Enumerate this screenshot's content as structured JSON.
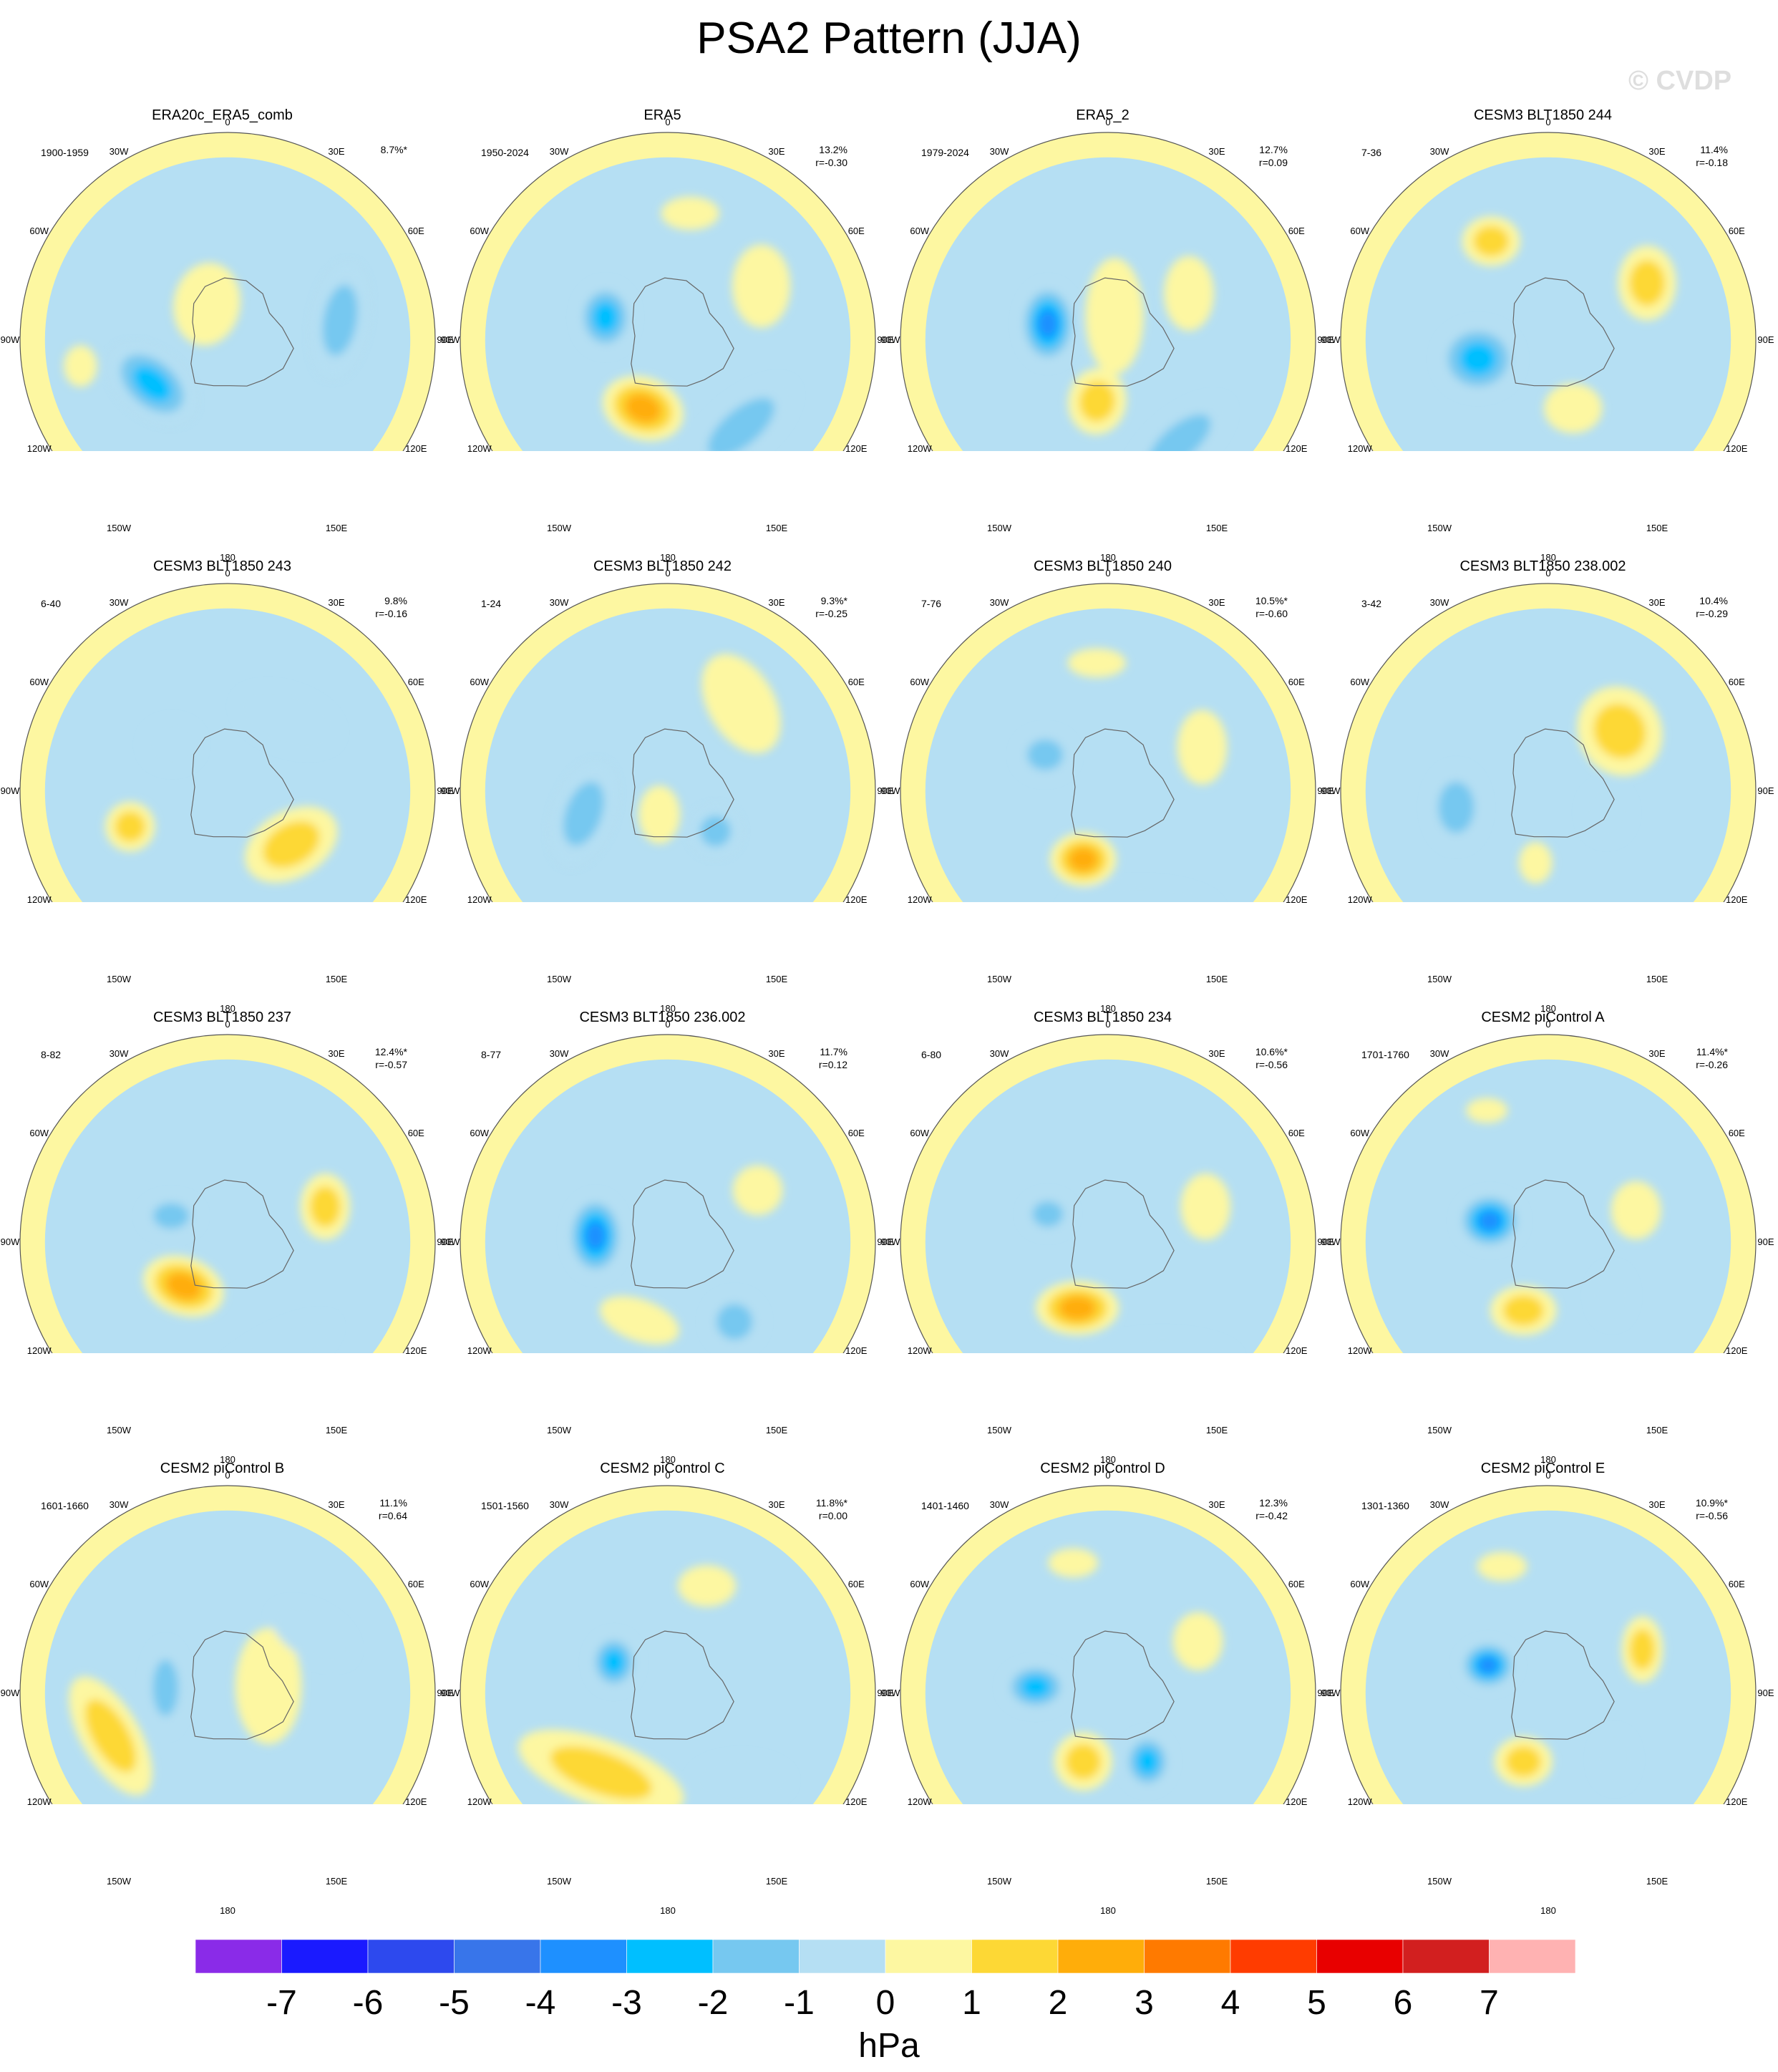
{
  "title": "PSA2 Pattern (JJA)",
  "watermark": "© CVDP",
  "chart_data": {
    "type": "heatmap",
    "projection": "south-polar-stereographic",
    "variable": "sea level pressure anomaly",
    "units": "hPa",
    "colorbar": {
      "levels": [
        -7,
        -6,
        -5,
        -4,
        -3,
        -2,
        -1,
        0,
        1,
        2,
        3,
        4,
        5,
        6,
        7
      ],
      "colors": [
        "#8a2be8",
        "#1a1aff",
        "#2d49ee",
        "#3875ea",
        "#1e90ff",
        "#00bfff",
        "#76c8f0",
        "#b5dff3",
        "#fdf7a1",
        "#fdd835",
        "#ffad0a",
        "#ff7a00",
        "#ff3c00",
        "#e80000",
        "#d21f1f",
        "#ffb2b2"
      ],
      "units_label": "hPa"
    },
    "lon_labels": [
      "0",
      "30E",
      "60E",
      "90E",
      "120E",
      "150E",
      "180",
      "150W",
      "120W",
      "90W",
      "60W",
      "30W"
    ],
    "panels": [
      {
        "name": "ERA20c_ERA5_comb",
        "years": "1900-1959",
        "pct": "8.7%*",
        "r": "",
        "features": [
          {
            "v": -3,
            "ang": 240,
            "dist": 0.42,
            "rx": 0.24,
            "ry": 0.15,
            "rot": 40
          },
          {
            "v": -2,
            "ang": 80,
            "dist": 0.55,
            "rx": 0.28,
            "ry": 0.13,
            "rot": 100
          },
          {
            "v": 1,
            "ang": 330,
            "dist": 0.2,
            "rx": 0.16,
            "ry": 0.2,
            "rot": 10
          },
          {
            "v": 1,
            "ang": 260,
            "dist": 0.72,
            "rx": 0.08,
            "ry": 0.1,
            "rot": 0
          }
        ]
      },
      {
        "name": "ERA5",
        "years": "1950-2024",
        "pct": "13.2%",
        "r": "r=-0.30",
        "features": [
          {
            "v": -3,
            "ang": 290,
            "dist": 0.32,
            "rx": 0.14,
            "ry": 0.17,
            "rot": 0
          },
          {
            "v": 3,
            "ang": 200,
            "dist": 0.35,
            "rx": 0.2,
            "ry": 0.15,
            "rot": 20
          },
          {
            "v": -2,
            "ang": 140,
            "dist": 0.55,
            "rx": 0.32,
            "ry": 0.14,
            "rot": 140
          },
          {
            "v": 1,
            "ang": 60,
            "dist": 0.52,
            "rx": 0.14,
            "ry": 0.2,
            "rot": 0
          },
          {
            "v": 1,
            "ang": 10,
            "dist": 0.62,
            "rx": 0.14,
            "ry": 0.08,
            "rot": 0
          }
        ]
      },
      {
        "name": "ERA5_2",
        "years": "1979-2024",
        "pct": "12.7%",
        "r": "r=0.09",
        "features": [
          {
            "v": -4,
            "ang": 285,
            "dist": 0.3,
            "rx": 0.14,
            "ry": 0.2,
            "rot": 0
          },
          {
            "v": 2,
            "ang": 190,
            "dist": 0.3,
            "rx": 0.14,
            "ry": 0.16,
            "rot": 10
          },
          {
            "v": -2,
            "ang": 145,
            "dist": 0.6,
            "rx": 0.3,
            "ry": 0.13,
            "rot": 140
          },
          {
            "v": 1,
            "ang": 60,
            "dist": 0.45,
            "rx": 0.12,
            "ry": 0.18,
            "rot": 0
          },
          {
            "v": 1,
            "ang": 15,
            "dist": 0.12,
            "rx": 0.14,
            "ry": 0.28,
            "rot": 0
          }
        ]
      },
      {
        "name": "CESM3 BLT1850 244",
        "years": "7-36",
        "pct": "11.4%",
        "r": "r=-0.18",
        "features": [
          {
            "v": -3,
            "ang": 255,
            "dist": 0.35,
            "rx": 0.2,
            "ry": 0.18,
            "rot": 0
          },
          {
            "v": 2,
            "ang": 330,
            "dist": 0.55,
            "rx": 0.14,
            "ry": 0.12,
            "rot": 0
          },
          {
            "v": 2,
            "ang": 60,
            "dist": 0.55,
            "rx": 0.14,
            "ry": 0.18,
            "rot": 0
          },
          {
            "v": 1,
            "ang": 160,
            "dist": 0.35,
            "rx": 0.14,
            "ry": 0.12,
            "rot": 0
          }
        ]
      },
      {
        "name": "CESM3 BLT1850 243",
        "years": "6-40",
        "pct": "9.8%",
        "r": "r=-0.16",
        "features": [
          {
            "v": 2,
            "ang": 130,
            "dist": 0.4,
            "rx": 0.24,
            "ry": 0.16,
            "rot": 150
          },
          {
            "v": 2,
            "ang": 250,
            "dist": 0.5,
            "rx": 0.12,
            "ry": 0.12,
            "rot": 0
          },
          {
            "v": -1,
            "ang": 40,
            "dist": 0.45,
            "rx": 0.26,
            "ry": 0.14,
            "rot": 20
          },
          {
            "v": -1,
            "ang": 310,
            "dist": 0.35,
            "rx": 0.14,
            "ry": 0.12,
            "rot": 0
          }
        ]
      },
      {
        "name": "CESM3 BLT1850 242",
        "years": "1-24",
        "pct": "9.3%*",
        "r": "r=-0.25",
        "features": [
          {
            "v": -2,
            "ang": 255,
            "dist": 0.42,
            "rx": 0.14,
            "ry": 0.26,
            "rot": 20
          },
          {
            "v": -2,
            "ang": 130,
            "dist": 0.3,
            "rx": 0.12,
            "ry": 0.12,
            "rot": 0
          },
          {
            "v": 1,
            "ang": 40,
            "dist": 0.55,
            "rx": 0.16,
            "ry": 0.26,
            "rot": 150
          },
          {
            "v": 1,
            "ang": 200,
            "dist": 0.12,
            "rx": 0.1,
            "ry": 0.14,
            "rot": 0
          }
        ]
      },
      {
        "name": "CESM3 BLT1850 240",
        "years": "7-76",
        "pct": "10.5%*",
        "r": "r=-0.60",
        "features": [
          {
            "v": 3,
            "ang": 200,
            "dist": 0.35,
            "rx": 0.16,
            "ry": 0.13,
            "rot": 0
          },
          {
            "v": -2,
            "ang": 300,
            "dist": 0.35,
            "rx": 0.14,
            "ry": 0.12,
            "rot": 0
          },
          {
            "v": -1,
            "ang": 165,
            "dist": 0.6,
            "rx": 0.38,
            "ry": 0.14,
            "rot": 0
          },
          {
            "v": 1,
            "ang": 65,
            "dist": 0.5,
            "rx": 0.12,
            "ry": 0.18,
            "rot": 0
          },
          {
            "v": 1,
            "ang": 355,
            "dist": 0.62,
            "rx": 0.14,
            "ry": 0.07,
            "rot": 0
          }
        ]
      },
      {
        "name": "CESM3 BLT1850 238.002",
        "years": "3-42",
        "pct": "10.4%",
        "r": "r=-0.29",
        "features": [
          {
            "v": 2,
            "ang": 50,
            "dist": 0.45,
            "rx": 0.2,
            "ry": 0.22,
            "rot": 150
          },
          {
            "v": -2,
            "ang": 260,
            "dist": 0.45,
            "rx": 0.14,
            "ry": 0.2,
            "rot": 0
          },
          {
            "v": -1,
            "ang": 110,
            "dist": 0.3,
            "rx": 0.12,
            "ry": 0.14,
            "rot": 0
          },
          {
            "v": 1,
            "ang": 190,
            "dist": 0.35,
            "rx": 0.08,
            "ry": 0.1,
            "rot": 0
          }
        ]
      },
      {
        "name": "CESM3 BLT1850 237",
        "years": "8-82",
        "pct": "12.4%*",
        "r": "r=-0.57",
        "features": [
          {
            "v": 3,
            "ang": 225,
            "dist": 0.3,
            "rx": 0.2,
            "ry": 0.14,
            "rot": 20
          },
          {
            "v": -2,
            "ang": 295,
            "dist": 0.3,
            "rx": 0.14,
            "ry": 0.1,
            "rot": 0
          },
          {
            "v": 2,
            "ang": 70,
            "dist": 0.5,
            "rx": 0.12,
            "ry": 0.16,
            "rot": 0
          },
          {
            "v": -1,
            "ang": 160,
            "dist": 0.6,
            "rx": 0.36,
            "ry": 0.12,
            "rot": 150
          }
        ]
      },
      {
        "name": "CESM3 BLT1850 236.002",
        "years": "8-77",
        "pct": "11.7%",
        "r": "r=0.12",
        "features": [
          {
            "v": -4,
            "ang": 275,
            "dist": 0.35,
            "rx": 0.14,
            "ry": 0.2,
            "rot": 0
          },
          {
            "v": 1,
            "ang": 200,
            "dist": 0.4,
            "rx": 0.2,
            "ry": 0.1,
            "rot": 20
          },
          {
            "v": -2,
            "ang": 140,
            "dist": 0.5,
            "rx": 0.14,
            "ry": 0.14,
            "rot": 0
          },
          {
            "v": 1,
            "ang": 60,
            "dist": 0.5,
            "rx": 0.12,
            "ry": 0.12,
            "rot": 0
          }
        ]
      },
      {
        "name": "CESM3 BLT1850 234",
        "years": "6-80",
        "pct": "10.6%*",
        "r": "r=-0.56",
        "features": [
          {
            "v": 3,
            "ang": 205,
            "dist": 0.35,
            "rx": 0.2,
            "ry": 0.13,
            "rot": 0
          },
          {
            "v": -2,
            "ang": 295,
            "dist": 0.32,
            "rx": 0.12,
            "ry": 0.1,
            "rot": 0
          },
          {
            "v": -1,
            "ang": 155,
            "dist": 0.62,
            "rx": 0.36,
            "ry": 0.12,
            "rot": 0
          },
          {
            "v": 1,
            "ang": 70,
            "dist": 0.5,
            "rx": 0.12,
            "ry": 0.16,
            "rot": 0
          }
        ]
      },
      {
        "name": "CESM2 piControl A",
        "years": "1701-1760",
        "pct": "11.4%*",
        "r": "r=-0.26",
        "features": [
          {
            "v": -4,
            "ang": 290,
            "dist": 0.3,
            "rx": 0.16,
            "ry": 0.14,
            "rot": 0
          },
          {
            "v": 2,
            "ang": 200,
            "dist": 0.35,
            "rx": 0.16,
            "ry": 0.12,
            "rot": 0
          },
          {
            "v": -1,
            "ang": 130,
            "dist": 0.4,
            "rx": 0.1,
            "ry": 0.14,
            "rot": 0
          },
          {
            "v": 1,
            "ang": 70,
            "dist": 0.45,
            "rx": 0.12,
            "ry": 0.14,
            "rot": 0
          },
          {
            "v": 1,
            "ang": 335,
            "dist": 0.7,
            "rx": 0.1,
            "ry": 0.06,
            "rot": 0
          }
        ]
      },
      {
        "name": "CESM2 piControl B",
        "years": "1601-1660",
        "pct": "11.1%",
        "r": "r=0.64",
        "features": [
          {
            "v": -2,
            "ang": 275,
            "dist": 0.3,
            "rx": 0.1,
            "ry": 0.22,
            "rot": 0
          },
          {
            "v": 2,
            "ang": 250,
            "dist": 0.6,
            "rx": 0.14,
            "ry": 0.32,
            "rot": 150
          },
          {
            "v": 1,
            "ang": 80,
            "dist": 0.2,
            "rx": 0.16,
            "ry": 0.28,
            "rot": 0
          },
          {
            "v": -1,
            "ang": 55,
            "dist": 0.5,
            "rx": 0.22,
            "ry": 0.12,
            "rot": 30
          }
        ]
      },
      {
        "name": "CESM2 piControl C",
        "years": "1501-1560",
        "pct": "11.8%*",
        "r": "r=0.00",
        "features": [
          {
            "v": -3,
            "ang": 300,
            "dist": 0.3,
            "rx": 0.12,
            "ry": 0.14,
            "rot": 0
          },
          {
            "v": 2,
            "ang": 220,
            "dist": 0.5,
            "rx": 0.42,
            "ry": 0.16,
            "rot": 20
          },
          {
            "v": 1,
            "ang": 20,
            "dist": 0.55,
            "rx": 0.14,
            "ry": 0.1,
            "rot": 0
          },
          {
            "v": -1,
            "ang": 140,
            "dist": 0.55,
            "rx": 0.24,
            "ry": 0.12,
            "rot": 0
          }
        ]
      },
      {
        "name": "CESM2 piControl D",
        "years": "1401-1460",
        "pct": "12.3%",
        "r": "r=-0.42",
        "features": [
          {
            "v": -3,
            "ang": 275,
            "dist": 0.35,
            "rx": 0.16,
            "ry": 0.12,
            "rot": 0
          },
          {
            "v": 2,
            "ang": 200,
            "dist": 0.35,
            "rx": 0.14,
            "ry": 0.14,
            "rot": 0
          },
          {
            "v": -3,
            "ang": 150,
            "dist": 0.38,
            "rx": 0.12,
            "ry": 0.14,
            "rot": 0
          },
          {
            "v": 1,
            "ang": 60,
            "dist": 0.5,
            "rx": 0.12,
            "ry": 0.14,
            "rot": 0
          },
          {
            "v": 1,
            "ang": 345,
            "dist": 0.65,
            "rx": 0.12,
            "ry": 0.07,
            "rot": 0
          }
        ]
      },
      {
        "name": "CESM2 piControl E",
        "years": "1301-1360",
        "pct": "10.9%*",
        "r": "r=-0.56",
        "features": [
          {
            "v": -4,
            "ang": 295,
            "dist": 0.32,
            "rx": 0.14,
            "ry": 0.12,
            "rot": 0
          },
          {
            "v": 2,
            "ang": 200,
            "dist": 0.35,
            "rx": 0.14,
            "ry": 0.12,
            "rot": 0
          },
          {
            "v": 2,
            "ang": 65,
            "dist": 0.5,
            "rx": 0.1,
            "ry": 0.16,
            "rot": 0
          },
          {
            "v": -1,
            "ang": 135,
            "dist": 0.45,
            "rx": 0.1,
            "ry": 0.14,
            "rot": 0
          },
          {
            "v": 1,
            "ang": 340,
            "dist": 0.65,
            "rx": 0.12,
            "ry": 0.07,
            "rot": 0
          }
        ]
      }
    ]
  }
}
